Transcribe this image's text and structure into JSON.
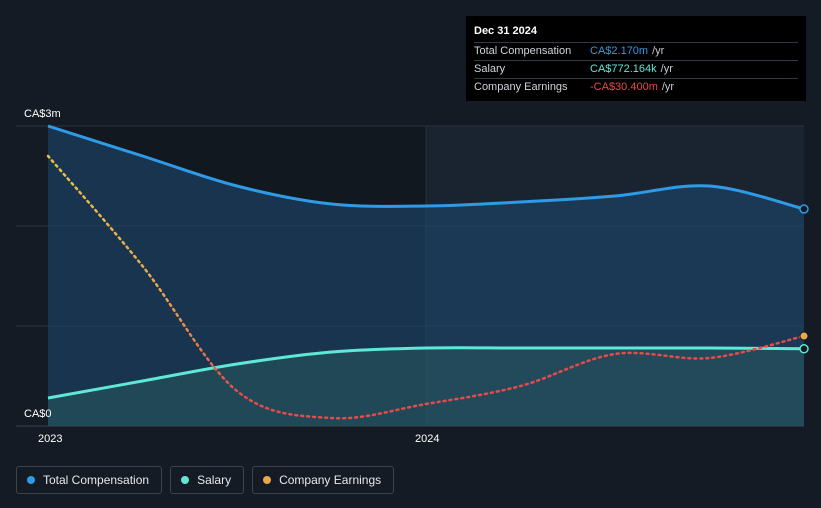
{
  "tooltip": {
    "date": "Dec 31 2024",
    "rows": [
      {
        "label": "Total Compensation",
        "value": "CA$2.170m",
        "unit": "/yr",
        "color": "#2f9ae6"
      },
      {
        "label": "Salary",
        "value": "CA$772.164k",
        "unit": "/yr",
        "color": "#5fe8d6"
      },
      {
        "label": "Company Earnings",
        "value": "-CA$30.400m",
        "unit": "/yr",
        "color": "#e84a4a"
      }
    ]
  },
  "axis": {
    "y_top": "CA$3m",
    "y_bottom": "CA$0",
    "x_labels": [
      "2023",
      "2024"
    ]
  },
  "legend": [
    {
      "label": "Total Compensation",
      "color": "#2f9ae6"
    },
    {
      "label": "Salary",
      "color": "#5fe8d6"
    },
    {
      "label": "Company Earnings",
      "color": "#e8a84a"
    }
  ],
  "chart_data": {
    "type": "area",
    "title": "",
    "xlabel": "",
    "ylabel": "",
    "ylim": [
      0,
      3
    ],
    "xlim": [
      2023.0,
      2025.0
    ],
    "x_ticks": [
      2023,
      2024
    ],
    "series": [
      {
        "name": "Total Compensation",
        "unit": "CA$m",
        "x": [
          2023.0,
          2023.25,
          2023.5,
          2023.75,
          2024.0,
          2024.25,
          2024.5,
          2024.75,
          2025.0
        ],
        "y": [
          3.0,
          2.7,
          2.4,
          2.22,
          2.2,
          2.24,
          2.3,
          2.4,
          2.17
        ]
      },
      {
        "name": "Salary",
        "unit": "CA$m",
        "x": [
          2023.0,
          2023.25,
          2023.5,
          2023.75,
          2024.0,
          2024.25,
          2024.5,
          2024.75,
          2025.0
        ],
        "y": [
          0.28,
          0.45,
          0.62,
          0.74,
          0.78,
          0.78,
          0.78,
          0.78,
          0.772
        ]
      },
      {
        "name": "Company Earnings",
        "unit": "scaled",
        "x": [
          2023.0,
          2023.25,
          2023.5,
          2023.75,
          2024.0,
          2024.25,
          2024.5,
          2024.75,
          2025.0
        ],
        "y": [
          2.7,
          1.6,
          0.35,
          0.08,
          0.22,
          0.4,
          0.72,
          0.68,
          0.9
        ]
      }
    ]
  }
}
